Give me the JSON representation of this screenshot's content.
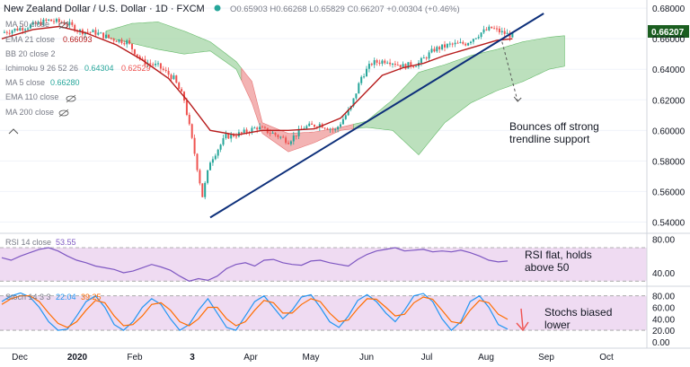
{
  "header": {
    "symbol": "New Zealand Dollar / U.S. Dollar · 1D · FXCM",
    "ohlc": "O0.65903  H0.66268  L0.65829  C0.66207  +0.00304 (+0.46%)"
  },
  "indicators": {
    "ma50": {
      "label": "MA 50 close"
    },
    "ema21": {
      "label": "EMA 21 close",
      "value": "0.66093"
    },
    "bb": {
      "label": "BB 20 close 2"
    },
    "ichimoku": {
      "label": "Ichimoku 9 26 52 26",
      "v1": "0.64304",
      "v2": "0.62529"
    },
    "ma5": {
      "label": "MA 5 close",
      "value": "0.66280"
    },
    "ema110": {
      "label": "EMA 110 close"
    },
    "ma200": {
      "label": "MA 200 close"
    }
  },
  "annotations": {
    "main": [
      "Bounces off strong",
      "trendline support"
    ],
    "rsi": [
      "RSI flat, holds",
      "above 50"
    ],
    "stoch": [
      "Stochs biased",
      "lower"
    ]
  },
  "rsi_header": {
    "label": "RSI 14 close",
    "value": "53.55"
  },
  "stoch_header": {
    "label": "Stoch 14 3 3",
    "k": "22.04",
    "d": "39.25"
  },
  "price_badge": "0.66207",
  "colors": {
    "candle_up": "#26a69a",
    "candle_down": "#ef5350",
    "ema21": "#b71c1c",
    "trendline": "#0d2f7a",
    "cloud_bull": "#a5d6a7",
    "cloud_bear": "#ef9a9a",
    "rsi_line": "#7e57c2",
    "stoch_k": "#2196f3",
    "stoch_d": "#ff6d00",
    "band_fill": "#e1bee7"
  },
  "chart_data": [
    {
      "type": "candlestick",
      "title": "New Zealand Dollar / U.S. Dollar · 1D · FXCM",
      "x_ticks": [
        "Dec",
        "2020",
        "Feb",
        "3",
        "Apr",
        "May",
        "Jun",
        "Jul",
        "Aug",
        "Sep",
        "Oct"
      ],
      "y_ticks": [
        "0.68000",
        "0.66000",
        "0.64000",
        "0.62000",
        "0.60000",
        "0.58000",
        "0.56000",
        "0.54000"
      ],
      "ylim": [
        0.535,
        0.683
      ],
      "close_path": [
        [
          0,
          0.664
        ],
        [
          10,
          0.668
        ],
        [
          18,
          0.672
        ],
        [
          25,
          0.67
        ],
        [
          30,
          0.665
        ],
        [
          36,
          0.664
        ],
        [
          42,
          0.66
        ],
        [
          48,
          0.658
        ],
        [
          54,
          0.645
        ],
        [
          60,
          0.642
        ],
        [
          66,
          0.634
        ],
        [
          70,
          0.62
        ],
        [
          74,
          0.585
        ],
        [
          77,
          0.557
        ],
        [
          80,
          0.58
        ],
        [
          86,
          0.596
        ],
        [
          92,
          0.598
        ],
        [
          98,
          0.602
        ],
        [
          104,
          0.598
        ],
        [
          110,
          0.593
        ],
        [
          116,
          0.602
        ],
        [
          122,
          0.604
        ],
        [
          128,
          0.6
        ],
        [
          134,
          0.615
        ],
        [
          138,
          0.635
        ],
        [
          142,
          0.644
        ],
        [
          148,
          0.646
        ],
        [
          154,
          0.642
        ],
        [
          160,
          0.644
        ],
        [
          166,
          0.653
        ],
        [
          172,
          0.656
        ],
        [
          178,
          0.657
        ],
        [
          184,
          0.664
        ],
        [
          188,
          0.667
        ],
        [
          192,
          0.664
        ],
        [
          196,
          0.662
        ]
      ],
      "ema21_path": [
        [
          0,
          0.66
        ],
        [
          12,
          0.666
        ],
        [
          22,
          0.668
        ],
        [
          32,
          0.664
        ],
        [
          44,
          0.656
        ],
        [
          54,
          0.646
        ],
        [
          64,
          0.634
        ],
        [
          72,
          0.618
        ],
        [
          80,
          0.6
        ],
        [
          90,
          0.597
        ],
        [
          100,
          0.6
        ],
        [
          110,
          0.6
        ],
        [
          120,
          0.601
        ],
        [
          130,
          0.608
        ],
        [
          138,
          0.622
        ],
        [
          146,
          0.636
        ],
        [
          154,
          0.641
        ],
        [
          162,
          0.644
        ],
        [
          170,
          0.649
        ],
        [
          180,
          0.654
        ],
        [
          190,
          0.659
        ],
        [
          196,
          0.66
        ]
      ],
      "cloud_upper": [
        [
          40,
          0.665
        ],
        [
          50,
          0.67
        ],
        [
          60,
          0.671
        ],
        [
          70,
          0.665
        ],
        [
          80,
          0.658
        ],
        [
          90,
          0.645
        ],
        [
          96,
          0.632
        ],
        [
          100,
          0.605
        ],
        [
          110,
          0.598
        ],
        [
          120,
          0.599
        ],
        [
          130,
          0.602
        ],
        [
          140,
          0.606
        ],
        [
          150,
          0.62
        ],
        [
          160,
          0.638
        ],
        [
          170,
          0.643
        ],
        [
          180,
          0.649
        ],
        [
          190,
          0.653
        ],
        [
          200,
          0.658
        ],
        [
          210,
          0.661
        ],
        [
          216,
          0.662
        ]
      ],
      "cloud_lower": [
        [
          40,
          0.661
        ],
        [
          50,
          0.657
        ],
        [
          60,
          0.653
        ],
        [
          70,
          0.65
        ],
        [
          80,
          0.652
        ],
        [
          90,
          0.64
        ],
        [
          96,
          0.618
        ],
        [
          100,
          0.598
        ],
        [
          110,
          0.586
        ],
        [
          120,
          0.592
        ],
        [
          130,
          0.6
        ],
        [
          140,
          0.602
        ],
        [
          150,
          0.6
        ],
        [
          160,
          0.584
        ],
        [
          170,
          0.605
        ],
        [
          180,
          0.618
        ],
        [
          190,
          0.626
        ],
        [
          200,
          0.632
        ],
        [
          210,
          0.64
        ],
        [
          216,
          0.642
        ]
      ],
      "trendline": [
        [
          80,
          0.543
        ],
        [
          196,
          0.664
        ]
      ],
      "annotation_arrow": [
        [
          192,
          0.658
        ],
        [
          198,
          0.619
        ]
      ]
    },
    {
      "type": "line",
      "title": "RSI 14 close",
      "ylim": [
        25,
        85
      ],
      "y_ticks": [
        "80.00",
        "40.00"
      ],
      "band": [
        70,
        30
      ],
      "values": [
        58,
        55,
        60,
        64,
        68,
        70,
        66,
        60,
        55,
        52,
        48,
        46,
        44,
        40,
        42,
        46,
        50,
        47,
        43,
        36,
        30,
        33,
        31,
        36,
        45,
        50,
        52,
        48,
        55,
        56,
        52,
        50,
        49,
        54,
        55,
        52,
        50,
        48,
        56,
        62,
        66,
        68,
        70,
        66,
        67,
        68,
        65,
        66,
        65,
        67,
        64,
        60,
        55,
        53,
        54
      ]
    },
    {
      "type": "line",
      "title": "Stoch 14 3 3",
      "ylim": [
        -8,
        92
      ],
      "y_ticks": [
        "80.00",
        "60.00",
        "40.00",
        "20.00",
        "0.00"
      ],
      "band": [
        80,
        20
      ],
      "series": [
        {
          "values": [
            70,
            80,
            85,
            78,
            60,
            35,
            20,
            22,
            45,
            70,
            80,
            60,
            30,
            20,
            35,
            60,
            75,
            65,
            40,
            20,
            30,
            55,
            75,
            50,
            25,
            20,
            45,
            70,
            80,
            60,
            40,
            55,
            78,
            82,
            60,
            35,
            25,
            45,
            72,
            82,
            70,
            50,
            35,
            55,
            80,
            84,
            70,
            40,
            20,
            35,
            70,
            80,
            60,
            30,
            22
          ]
        },
        {
          "values": [
            65,
            75,
            80,
            80,
            70,
            50,
            32,
            25,
            35,
            55,
            72,
            68,
            45,
            28,
            30,
            45,
            65,
            68,
            55,
            35,
            28,
            40,
            60,
            60,
            40,
            28,
            35,
            55,
            72,
            68,
            50,
            50,
            65,
            75,
            70,
            50,
            35,
            38,
            58,
            75,
            74,
            60,
            45,
            48,
            68,
            78,
            74,
            55,
            35,
            32,
            55,
            72,
            68,
            48,
            39
          ]
        }
      ]
    }
  ]
}
